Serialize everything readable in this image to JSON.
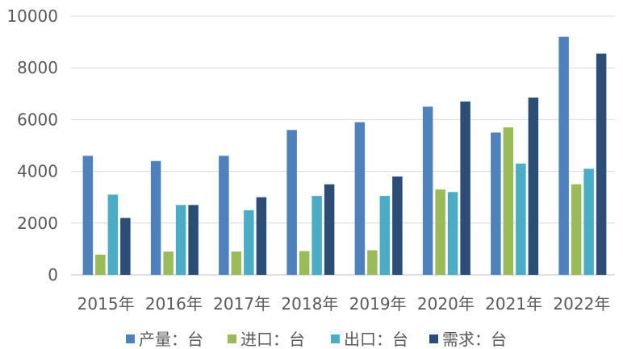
{
  "chart_data": {
    "type": "bar",
    "categories": [
      "2015年",
      "2016年",
      "2017年",
      "2018年",
      "2019年",
      "2020年",
      "2021年",
      "2022年"
    ],
    "series": [
      {
        "name": "产量：台",
        "color": "#4F81BD",
        "values": [
          4600,
          4400,
          4600,
          5600,
          5900,
          6500,
          5500,
          9200
        ]
      },
      {
        "name": "进口：台",
        "color": "#9BBB59",
        "values": [
          780,
          900,
          900,
          920,
          950,
          3300,
          5700,
          3500
        ]
      },
      {
        "name": "出口：台",
        "color": "#4BACC6",
        "values": [
          3100,
          2700,
          2500,
          3050,
          3050,
          3200,
          4300,
          4100
        ]
      },
      {
        "name": "需求：台",
        "color": "#2C4D75",
        "values": [
          2200,
          2700,
          3000,
          3500,
          3800,
          6700,
          6850,
          8550
        ]
      }
    ],
    "yticks": [
      "0",
      "2000",
      "4000",
      "6000",
      "8000",
      "10000"
    ],
    "ylim": [
      0,
      10000
    ],
    "grid": true,
    "legend_position": "bottom"
  }
}
